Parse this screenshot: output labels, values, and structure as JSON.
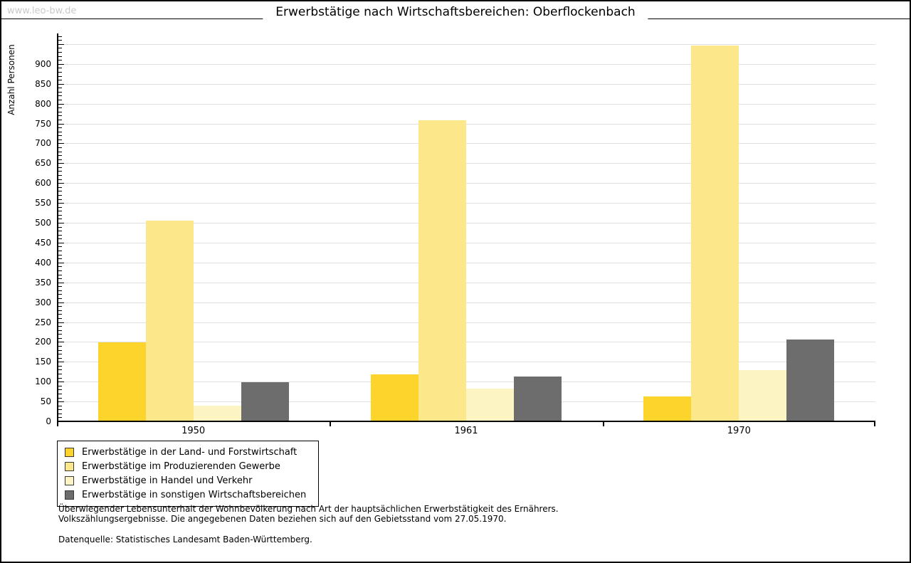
{
  "header": {
    "watermark": "www.leo-bw.de",
    "title": "Erwerbstätige nach Wirtschaftsbereichen: Oberflockenbach"
  },
  "chart_data": {
    "type": "bar",
    "title": "Erwerbstätige nach Wirtschaftsbereichen: Oberflockenbach",
    "xlabel": "",
    "ylabel": "Anzahl Personen",
    "ylim": [
      0,
      978
    ],
    "ytick_step": 50,
    "ytick_minor_step": 10,
    "grid": true,
    "gridline_color": "#e0e0e0",
    "legend_position": "bottom-left",
    "categories": [
      "1950",
      "1961",
      "1970"
    ],
    "series": [
      {
        "name": "Erwerbstätige in der Land- und Forstwirtschaft",
        "color": "#fcd42c",
        "values": [
          200,
          120,
          65
        ]
      },
      {
        "name": "Erwerbstätige im Produzierenden Gewerbe",
        "color": "#fce88a",
        "values": [
          507,
          760,
          948
        ]
      },
      {
        "name": "Erwerbstätige in Handel und Verkehr",
        "color": "#fcf4c3",
        "values": [
          42,
          85,
          130
        ]
      },
      {
        "name": "Erwerbstätige in sonstigen Wirtschaftsbereichen",
        "color": "#6d6d6d",
        "values": [
          100,
          115,
          207
        ]
      }
    ]
  },
  "footnotes": {
    "line1": "Überwiegender Lebensunterhalt der Wohnbevölkerung nach Art der hauptsächlichen Erwerbstätigkeit des Ernährers.",
    "line2": "Volkszählungsergebnisse. Die angegebenen Daten beziehen sich auf den Gebietsstand vom 27.05.1970.",
    "source": "Datenquelle: Statistisches Landesamt Baden-Württemberg."
  }
}
